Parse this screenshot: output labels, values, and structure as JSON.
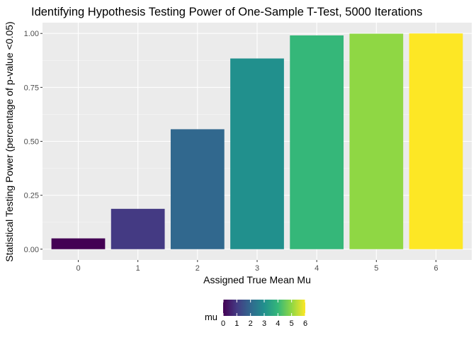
{
  "chart_data": {
    "type": "bar",
    "title": "Identifying Hypothesis Testing Power of One-Sample T-Test, 5000 Iterations",
    "xlabel": "Assigned True Mean Mu",
    "ylabel": "Statistical Testing Power (percentage of p-value <0.05)",
    "categories": [
      "0",
      "1",
      "2",
      "3",
      "4",
      "5",
      "6"
    ],
    "values": [
      0.05,
      0.187,
      0.556,
      0.884,
      0.991,
      0.999,
      1.0
    ],
    "colors": [
      "#440154",
      "#443a83",
      "#31688e",
      "#21908d",
      "#35b779",
      "#8fd744",
      "#fde725"
    ],
    "ylim": [
      -0.05,
      1.05
    ],
    "yticks": [
      0.0,
      0.25,
      0.5,
      0.75,
      1.0
    ],
    "ytick_labels": [
      "0.00",
      "0.25",
      "0.50",
      "0.75",
      "1.00"
    ],
    "grid": true,
    "legend": {
      "title": "mu",
      "placement": "bottom",
      "type": "colorbar",
      "colormap": "viridis",
      "range": [
        0,
        6
      ],
      "tick_labels": [
        "0",
        "1",
        "2",
        "3",
        "4",
        "5",
        "6"
      ]
    }
  }
}
